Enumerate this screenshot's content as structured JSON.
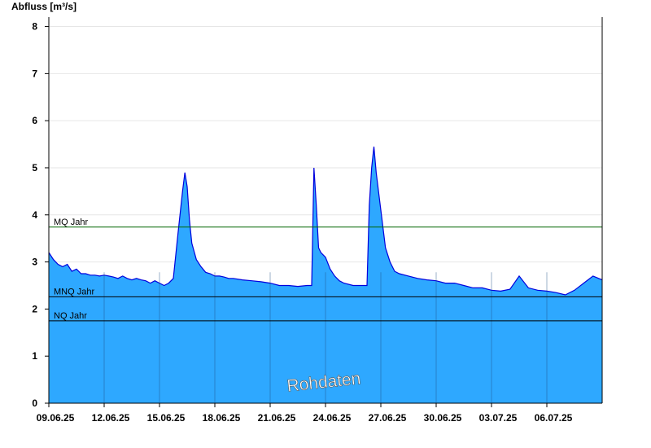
{
  "chart_data": {
    "type": "area",
    "ylabel": "Abfluss [m³/s]",
    "ylim": [
      0,
      8.2
    ],
    "yticks": [
      0,
      1,
      2,
      3,
      4,
      5,
      6,
      7,
      8
    ],
    "xlim": [
      "2025-06-09",
      "2025-07-09"
    ],
    "xticks": [
      "09.06.25",
      "12.06.25",
      "15.06.25",
      "18.06.25",
      "21.06.25",
      "24.06.25",
      "27.06.25",
      "30.06.25",
      "03.07.25",
      "06.07.25"
    ],
    "grid": true,
    "fill_color": "#2ea8ff",
    "line_color": "#0000dd",
    "watermark": "Rohdaten",
    "reference_lines": [
      {
        "label": "MQ Jahr",
        "value": 3.74,
        "color": "#006600"
      },
      {
        "label": "MNQ Jahr",
        "value": 2.26,
        "color": "#000000"
      },
      {
        "label": "NQ Jahr",
        "value": 1.75,
        "color": "#000000"
      }
    ],
    "series": [
      {
        "x": [
          "09.06.25 00:00",
          "09.06.25 06:00",
          "09.06.25 12:00",
          "09.06.25 18:00",
          "10.06.25 00:00",
          "10.06.25 06:00",
          "10.06.25 12:00",
          "10.06.25 18:00",
          "11.06.25 00:00",
          "11.06.25 06:00",
          "11.06.25 12:00",
          "11.06.25 18:00",
          "12.06.25 00:00",
          "12.06.25 06:00",
          "12.06.25 12:00",
          "12.06.25 18:00",
          "13.06.25 00:00",
          "13.06.25 06:00",
          "13.06.25 12:00",
          "13.06.25 18:00",
          "14.06.25 00:00",
          "14.06.25 06:00",
          "14.06.25 12:00",
          "14.06.25 18:00",
          "15.06.25 00:00",
          "15.06.25 06:00",
          "15.06.25 12:00",
          "15.06.25 18:00",
          "16.06.25 00:00",
          "16.06.25 06:00",
          "16.06.25 09:00",
          "16.06.25 12:00",
          "16.06.25 15:00",
          "16.06.25 18:00",
          "17.06.25 00:00",
          "17.06.25 06:00",
          "17.06.25 12:00",
          "17.06.25 18:00",
          "18.06.25 00:00",
          "18.06.25 06:00",
          "18.06.25 12:00",
          "18.06.25 18:00",
          "19.06.25 00:00",
          "19.06.25 12:00",
          "20.06.25 00:00",
          "20.06.25 12:00",
          "21.06.25 00:00",
          "21.06.25 12:00",
          "22.06.25 00:00",
          "22.06.25 12:00",
          "23.06.25 00:00",
          "23.06.25 06:00",
          "23.06.25 09:00",
          "23.06.25 12:00",
          "23.06.25 15:00",
          "23.06.25 18:00",
          "24.06.25 00:00",
          "24.06.25 06:00",
          "24.06.25 12:00",
          "24.06.25 18:00",
          "25.06.25 00:00",
          "25.06.25 12:00",
          "26.06.25 00:00",
          "26.06.25 06:00",
          "26.06.25 09:00",
          "26.06.25 12:00",
          "26.06.25 15:00",
          "26.06.25 18:00",
          "27.06.25 00:00",
          "27.06.25 06:00",
          "27.06.25 12:00",
          "27.06.25 18:00",
          "28.06.25 00:00",
          "28.06.25 12:00",
          "29.06.25 00:00",
          "29.06.25 12:00",
          "30.06.25 00:00",
          "30.06.25 12:00",
          "01.07.25 00:00",
          "01.07.25 12:00",
          "02.07.25 00:00",
          "02.07.25 12:00",
          "03.07.25 00:00",
          "03.07.25 12:00",
          "04.07.25 00:00",
          "04.07.25 12:00",
          "05.07.25 00:00",
          "05.07.25 12:00",
          "06.07.25 00:00",
          "06.07.25 12:00",
          "07.07.25 00:00",
          "07.07.25 12:00",
          "08.07.25 00:00",
          "08.07.25 12:00",
          "09.07.25 00:00"
        ],
        "values": [
          3.2,
          3.05,
          2.95,
          2.9,
          2.95,
          2.8,
          2.85,
          2.75,
          2.75,
          2.72,
          2.72,
          2.7,
          2.72,
          2.7,
          2.68,
          2.65,
          2.7,
          2.65,
          2.62,
          2.65,
          2.62,
          2.6,
          2.55,
          2.6,
          2.55,
          2.5,
          2.55,
          2.65,
          3.6,
          4.5,
          4.9,
          4.6,
          3.9,
          3.4,
          3.05,
          2.9,
          2.78,
          2.75,
          2.7,
          2.7,
          2.68,
          2.65,
          2.65,
          2.62,
          2.6,
          2.58,
          2.55,
          2.5,
          2.5,
          2.48,
          2.5,
          2.5,
          5.0,
          4.2,
          3.3,
          3.2,
          3.1,
          2.85,
          2.7,
          2.6,
          2.55,
          2.5,
          2.5,
          2.5,
          4.2,
          5.0,
          5.45,
          4.9,
          4.1,
          3.3,
          3.0,
          2.8,
          2.75,
          2.7,
          2.65,
          2.62,
          2.6,
          2.55,
          2.55,
          2.5,
          2.45,
          2.45,
          2.4,
          2.38,
          2.42,
          2.7,
          2.45,
          2.4,
          2.38,
          2.35,
          2.3,
          2.4,
          2.55,
          2.7,
          2.62
        ]
      }
    ]
  }
}
